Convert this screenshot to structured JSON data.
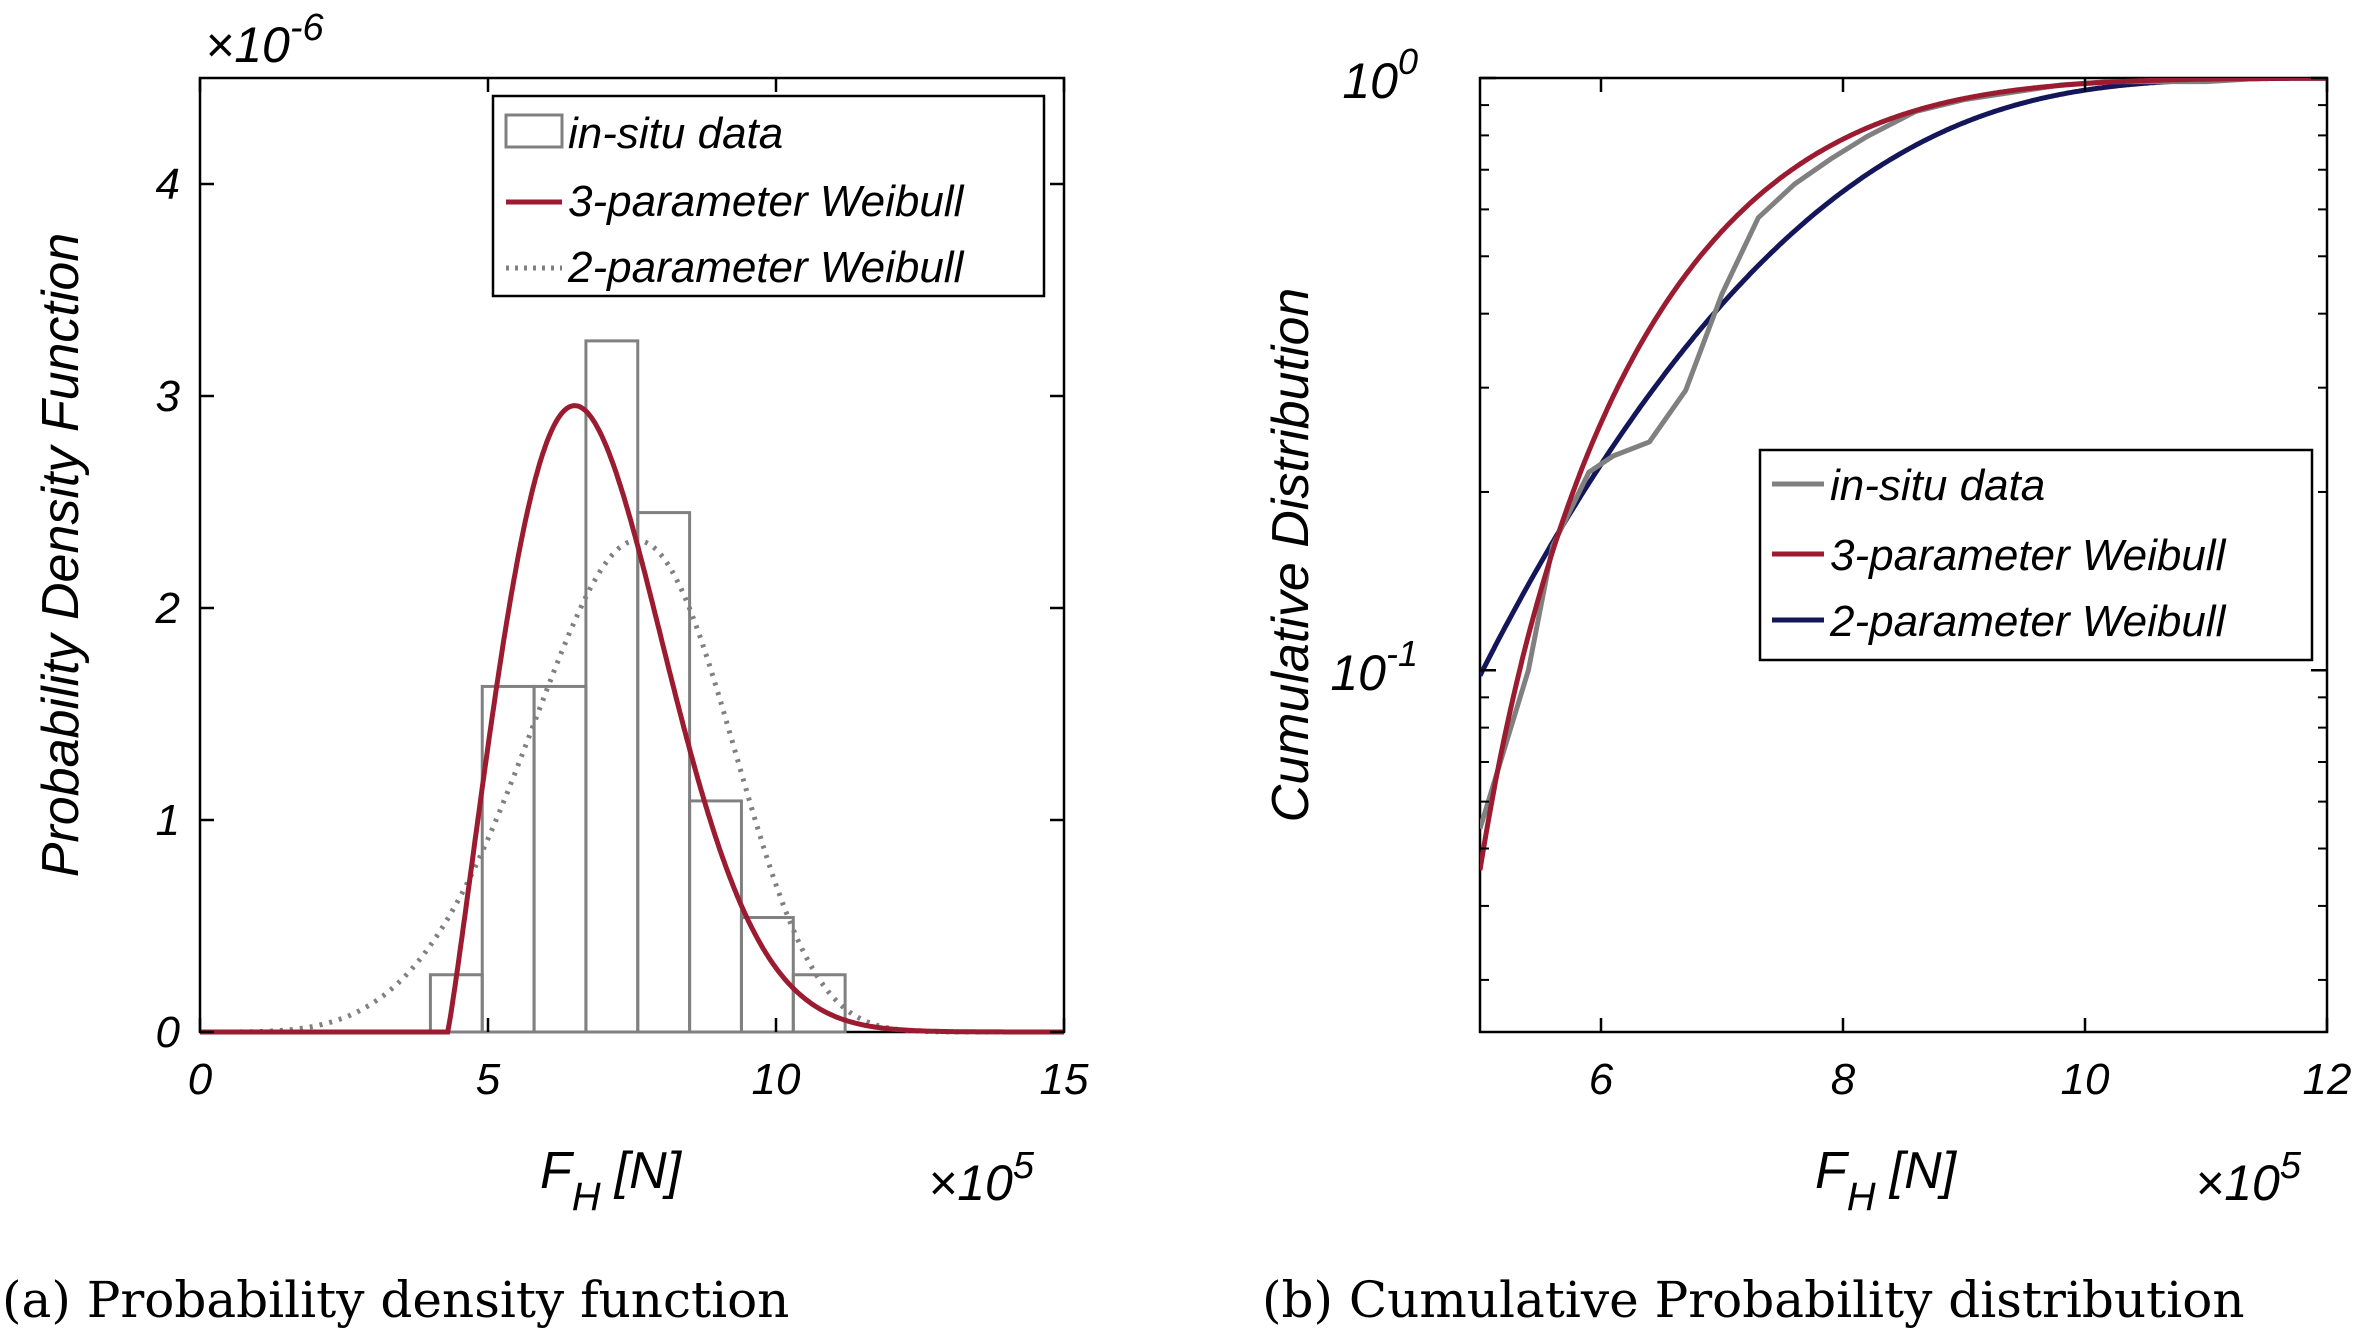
{
  "chart_data": [
    {
      "type": "bar",
      "id": "pdf",
      "caption": "(a) Probability density function",
      "xlabel": "F",
      "xlabel_sub": "H",
      "xlabel_unit": "[N]",
      "ylabel": "Probability Density Function",
      "x_multiplier": "×10",
      "x_multiplier_exp": "5",
      "y_multiplier": "×10",
      "y_multiplier_exp": "-6",
      "xlim": [
        0,
        15
      ],
      "ylim": [
        0,
        4.5
      ],
      "xticks": [
        0,
        5,
        10,
        15
      ],
      "yticks": [
        0,
        1,
        2,
        3,
        4
      ],
      "grid": false,
      "legend_position": "top-right",
      "bins": [
        {
          "x0": 4.0,
          "x1": 4.9,
          "value": 0.27
        },
        {
          "x0": 4.9,
          "x1": 5.8,
          "value": 1.63
        },
        {
          "x0": 5.8,
          "x1": 6.7,
          "value": 1.63
        },
        {
          "x0": 6.7,
          "x1": 7.6,
          "value": 3.26
        },
        {
          "x0": 7.6,
          "x1": 8.5,
          "value": 2.45
        },
        {
          "x0": 8.5,
          "x1": 9.4,
          "value": 1.09
        },
        {
          "x0": 9.4,
          "x1": 10.3,
          "value": 0.54
        },
        {
          "x0": 10.3,
          "x1": 11.2,
          "value": 0.27
        }
      ],
      "series": [
        {
          "name": "in-situ data",
          "kind": "histogram",
          "color": "#808080"
        },
        {
          "name": "3-parameter Weibull",
          "kind": "line",
          "color": "#9B1B30",
          "weibull": {
            "shape": 2.1,
            "scale": 3.0,
            "location": 4.3
          }
        },
        {
          "name": "2-parameter Weibull",
          "kind": "dotted",
          "color": "#808080",
          "weibull": {
            "shape": 4.9,
            "scale": 7.95,
            "location": 0
          }
        }
      ]
    },
    {
      "type": "line",
      "id": "cdf",
      "caption": "(b) Cumulative Probability distribution",
      "xlabel": "F",
      "xlabel_sub": "H",
      "xlabel_unit": "[N]",
      "ylabel": "Cumulative Distribution",
      "x_multiplier": "×10",
      "x_multiplier_exp": "5",
      "xlim": [
        5,
        12
      ],
      "ylim": [
        0.0245,
        1.0
      ],
      "yscale": "log",
      "xticks": [
        6,
        8,
        10,
        12
      ],
      "yticks": [
        {
          "value": 1.0,
          "base": "10",
          "exp": "0"
        },
        {
          "value": 0.1,
          "base": "10",
          "exp": "-1"
        }
      ],
      "grid": false,
      "legend_position": "center-right",
      "series": [
        {
          "name": "in-situ data",
          "color": "#808080",
          "x": [
            5.0,
            5.4,
            5.6,
            5.9,
            6.1,
            6.4,
            6.7,
            7.0,
            7.3,
            7.6,
            7.9,
            8.2,
            8.6,
            9.0,
            9.4,
            9.8,
            10.2,
            10.6,
            11.0,
            11.5,
            12.0
          ],
          "y": [
            0.054,
            0.1,
            0.162,
            0.216,
            0.23,
            0.243,
            0.297,
            0.432,
            0.581,
            0.662,
            0.73,
            0.797,
            0.878,
            0.919,
            0.946,
            0.973,
            0.986,
            0.986,
            0.986,
            1.0,
            1.0
          ]
        },
        {
          "name": "3-parameter Weibull",
          "color": "#9B1B30",
          "weibull": {
            "shape": 2.1,
            "scale": 3.0,
            "location": 4.3
          }
        },
        {
          "name": "2-parameter Weibull",
          "color": "#14165A",
          "weibull": {
            "shape": 4.9,
            "scale": 7.95,
            "location": 0
          }
        }
      ]
    }
  ]
}
